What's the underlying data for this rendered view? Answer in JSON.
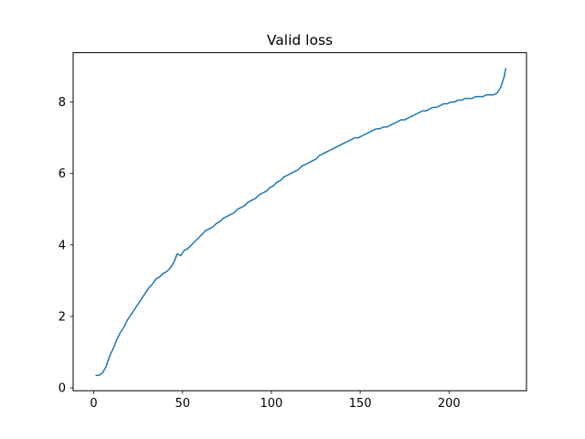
{
  "chart_data": {
    "type": "line",
    "title": "Valid loss",
    "xlabel": "",
    "ylabel": "",
    "xlim": [
      -11.6,
      243.6
    ],
    "ylim": [
      -0.08,
      9.38
    ],
    "xticks": [
      0,
      50,
      100,
      150,
      200
    ],
    "yticks": [
      0,
      2,
      4,
      6,
      8
    ],
    "grid": false,
    "legend": "none",
    "colors": {
      "line": "#1f77b4"
    },
    "series": [
      {
        "x": [
          1,
          3,
          5,
          7,
          9,
          11,
          13,
          15,
          17,
          19,
          21,
          23,
          25,
          27,
          29,
          31,
          33,
          35,
          37,
          39,
          41,
          43,
          45,
          47,
          49,
          51,
          53,
          55,
          57,
          59,
          61,
          63,
          65,
          67,
          69,
          71,
          73,
          75,
          77,
          79,
          81,
          83,
          85,
          87,
          89,
          91,
          93,
          95,
          97,
          99,
          101,
          103,
          105,
          107,
          109,
          111,
          113,
          115,
          117,
          119,
          121,
          123,
          125,
          127,
          129,
          131,
          133,
          135,
          137,
          139,
          141,
          143,
          145,
          147,
          149,
          151,
          153,
          155,
          157,
          159,
          161,
          163,
          165,
          167,
          169,
          171,
          173,
          175,
          177,
          179,
          181,
          183,
          185,
          187,
          189,
          191,
          193,
          195,
          197,
          199,
          201,
          203,
          205,
          207,
          209,
          211,
          213,
          215,
          217,
          219,
          221,
          223,
          225,
          227,
          229,
          231,
          232
        ],
        "values": [
          0.35,
          0.35,
          0.42,
          0.6,
          0.9,
          1.1,
          1.35,
          1.55,
          1.7,
          1.9,
          2.05,
          2.2,
          2.35,
          2.5,
          2.65,
          2.8,
          2.9,
          3.05,
          3.1,
          3.2,
          3.25,
          3.35,
          3.5,
          3.75,
          3.7,
          3.85,
          3.9,
          4.0,
          4.1,
          4.2,
          4.3,
          4.4,
          4.45,
          4.5,
          4.6,
          4.65,
          4.75,
          4.8,
          4.85,
          4.9,
          5.0,
          5.05,
          5.1,
          5.2,
          5.25,
          5.3,
          5.4,
          5.45,
          5.5,
          5.6,
          5.65,
          5.75,
          5.8,
          5.9,
          5.95,
          6.0,
          6.05,
          6.1,
          6.2,
          6.25,
          6.3,
          6.35,
          6.4,
          6.5,
          6.55,
          6.6,
          6.65,
          6.7,
          6.75,
          6.8,
          6.85,
          6.9,
          6.95,
          7.0,
          7.0,
          7.05,
          7.1,
          7.15,
          7.2,
          7.25,
          7.25,
          7.3,
          7.3,
          7.35,
          7.4,
          7.45,
          7.5,
          7.5,
          7.55,
          7.6,
          7.65,
          7.7,
          7.75,
          7.75,
          7.8,
          7.85,
          7.85,
          7.9,
          7.95,
          7.95,
          8.0,
          8.0,
          8.05,
          8.05,
          8.1,
          8.1,
          8.1,
          8.15,
          8.15,
          8.15,
          8.2,
          8.2,
          8.2,
          8.25,
          8.4,
          8.7,
          8.95
        ]
      }
    ]
  }
}
